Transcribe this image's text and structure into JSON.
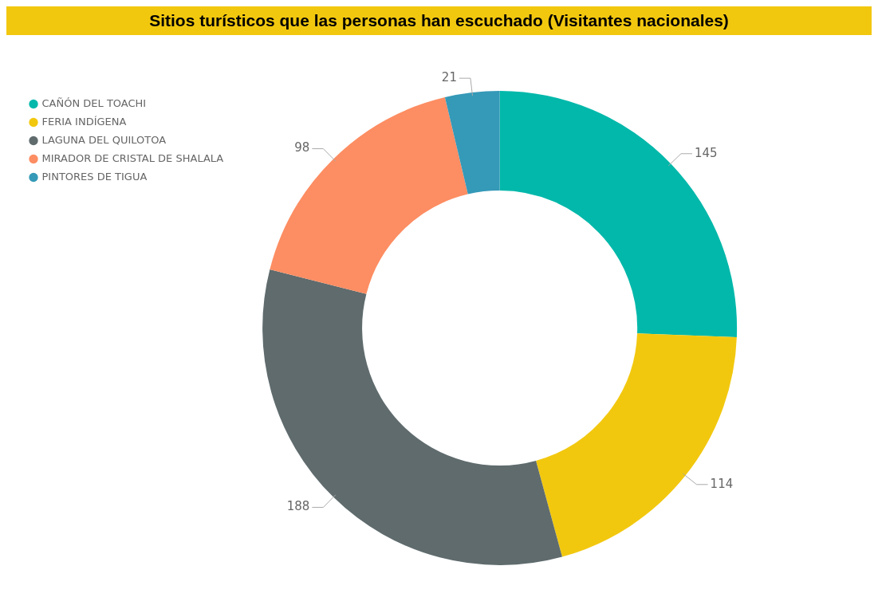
{
  "chart_data": {
    "type": "donut",
    "title": "Sitios turísticos que las personas han escuchado (Visitantes nacionales)",
    "categories": [
      "CAÑÓN DEL TOACHI",
      "FERIA INDÍGENA",
      "LAGUNA DEL QUILOTOA",
      "MIRADOR DE CRISTAL DE SHALALA",
      "PINTORES DE TIGUA"
    ],
    "values": [
      145,
      114,
      188,
      98,
      21
    ],
    "colors": [
      "#01b8aa",
      "#f2c80f",
      "#5f6b6d",
      "#fd8d62",
      "#3599b8"
    ],
    "legend": "top left",
    "data_labels": true
  }
}
